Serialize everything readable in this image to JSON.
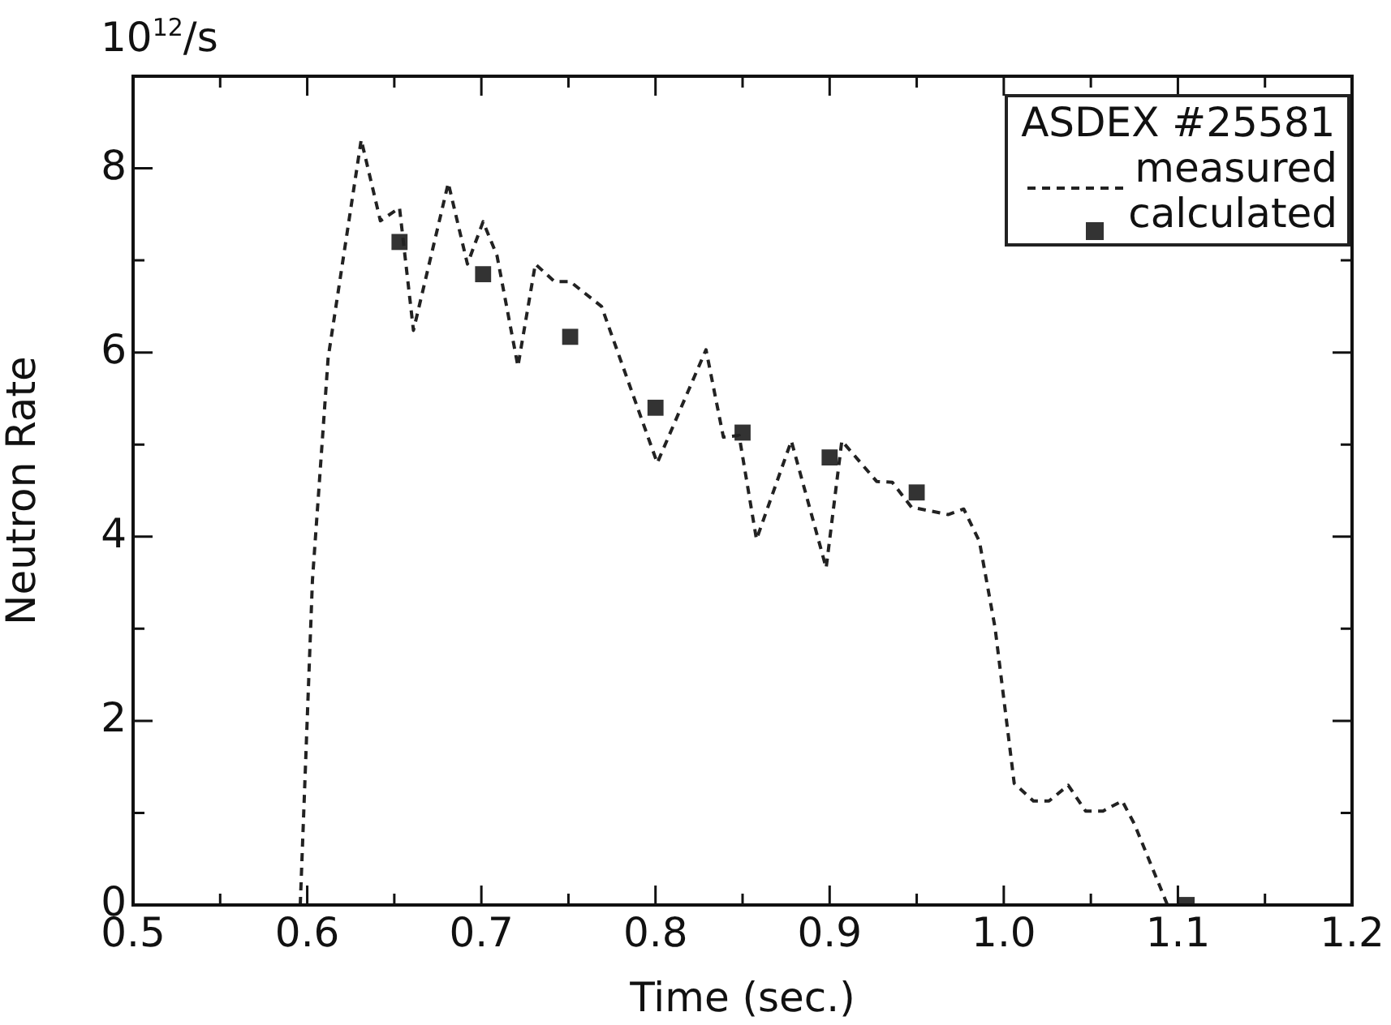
{
  "chart_data": {
    "type": "line",
    "xlabel": "Time (sec.)",
    "ylabel": "Neutron Rate",
    "legend_title": "ASDEX #25581",
    "annotations": [
      "10$^{12}$/s"
    ],
    "xlim": [
      0.5,
      1.2
    ],
    "ylim": [
      0,
      9
    ],
    "xticks": [
      0.5,
      {
        "value": 0.55,
        "label": null
      },
      0.6,
      {
        "value": 0.65,
        "label": null
      },
      0.7,
      {
        "value": 0.75,
        "label": null
      },
      0.8,
      {
        "value": 0.85,
        "label": null
      },
      0.9,
      {
        "value": 0.95,
        "label": null
      },
      {
        "value": 1.0,
        "label": "1.0"
      },
      {
        "value": 1.05,
        "label": null
      },
      1.1,
      {
        "value": 1.15,
        "label": null
      },
      1.2
    ],
    "yticks": [
      0,
      {
        "value": 1,
        "label": null
      },
      2,
      {
        "value": 3,
        "label": null
      },
      4,
      {
        "value": 5,
        "label": null
      },
      6,
      {
        "value": 7,
        "label": null
      },
      8
    ],
    "grid": false,
    "legend": "top right",
    "series": [
      {
        "name": "measured",
        "color": "#222222",
        "line_style": "dashed",
        "marker": "none",
        "x": [
          0.596,
          0.603,
          0.612,
          0.631,
          0.642,
          0.653,
          0.661,
          0.681,
          0.692,
          0.701,
          0.709,
          0.721,
          0.731,
          0.742,
          0.751,
          0.769,
          0.801,
          0.829,
          0.839,
          0.848,
          0.858,
          0.878,
          0.898,
          0.907,
          0.927,
          0.936,
          0.947,
          0.968,
          0.977,
          0.986,
          0.995,
          1.006,
          1.017,
          1.026,
          1.037,
          1.047,
          1.057,
          1.068,
          1.075,
          1.094
        ],
        "values": [
          0,
          3.53,
          5.94,
          8.31,
          7.43,
          7.57,
          6.24,
          7.84,
          6.96,
          7.42,
          7.05,
          5.85,
          6.96,
          6.77,
          6.77,
          6.5,
          4.8,
          6.03,
          5.08,
          5.1,
          3.97,
          5.04,
          3.66,
          5.04,
          4.6,
          4.59,
          4.32,
          4.24,
          4.3,
          3.95,
          3.01,
          1.32,
          1.13,
          1.13,
          1.3,
          1.02,
          1.02,
          1.13,
          0.88,
          0
        ]
      },
      {
        "name": "calculated",
        "type": "scatter",
        "color": "#333333",
        "marker": "square",
        "x": [
          0.653,
          0.701,
          0.751,
          0.8,
          0.85,
          0.9,
          0.95,
          1.105
        ],
        "values": [
          7.2,
          6.85,
          6.17,
          5.4,
          5.13,
          4.86,
          4.48,
          0
        ]
      }
    ]
  }
}
